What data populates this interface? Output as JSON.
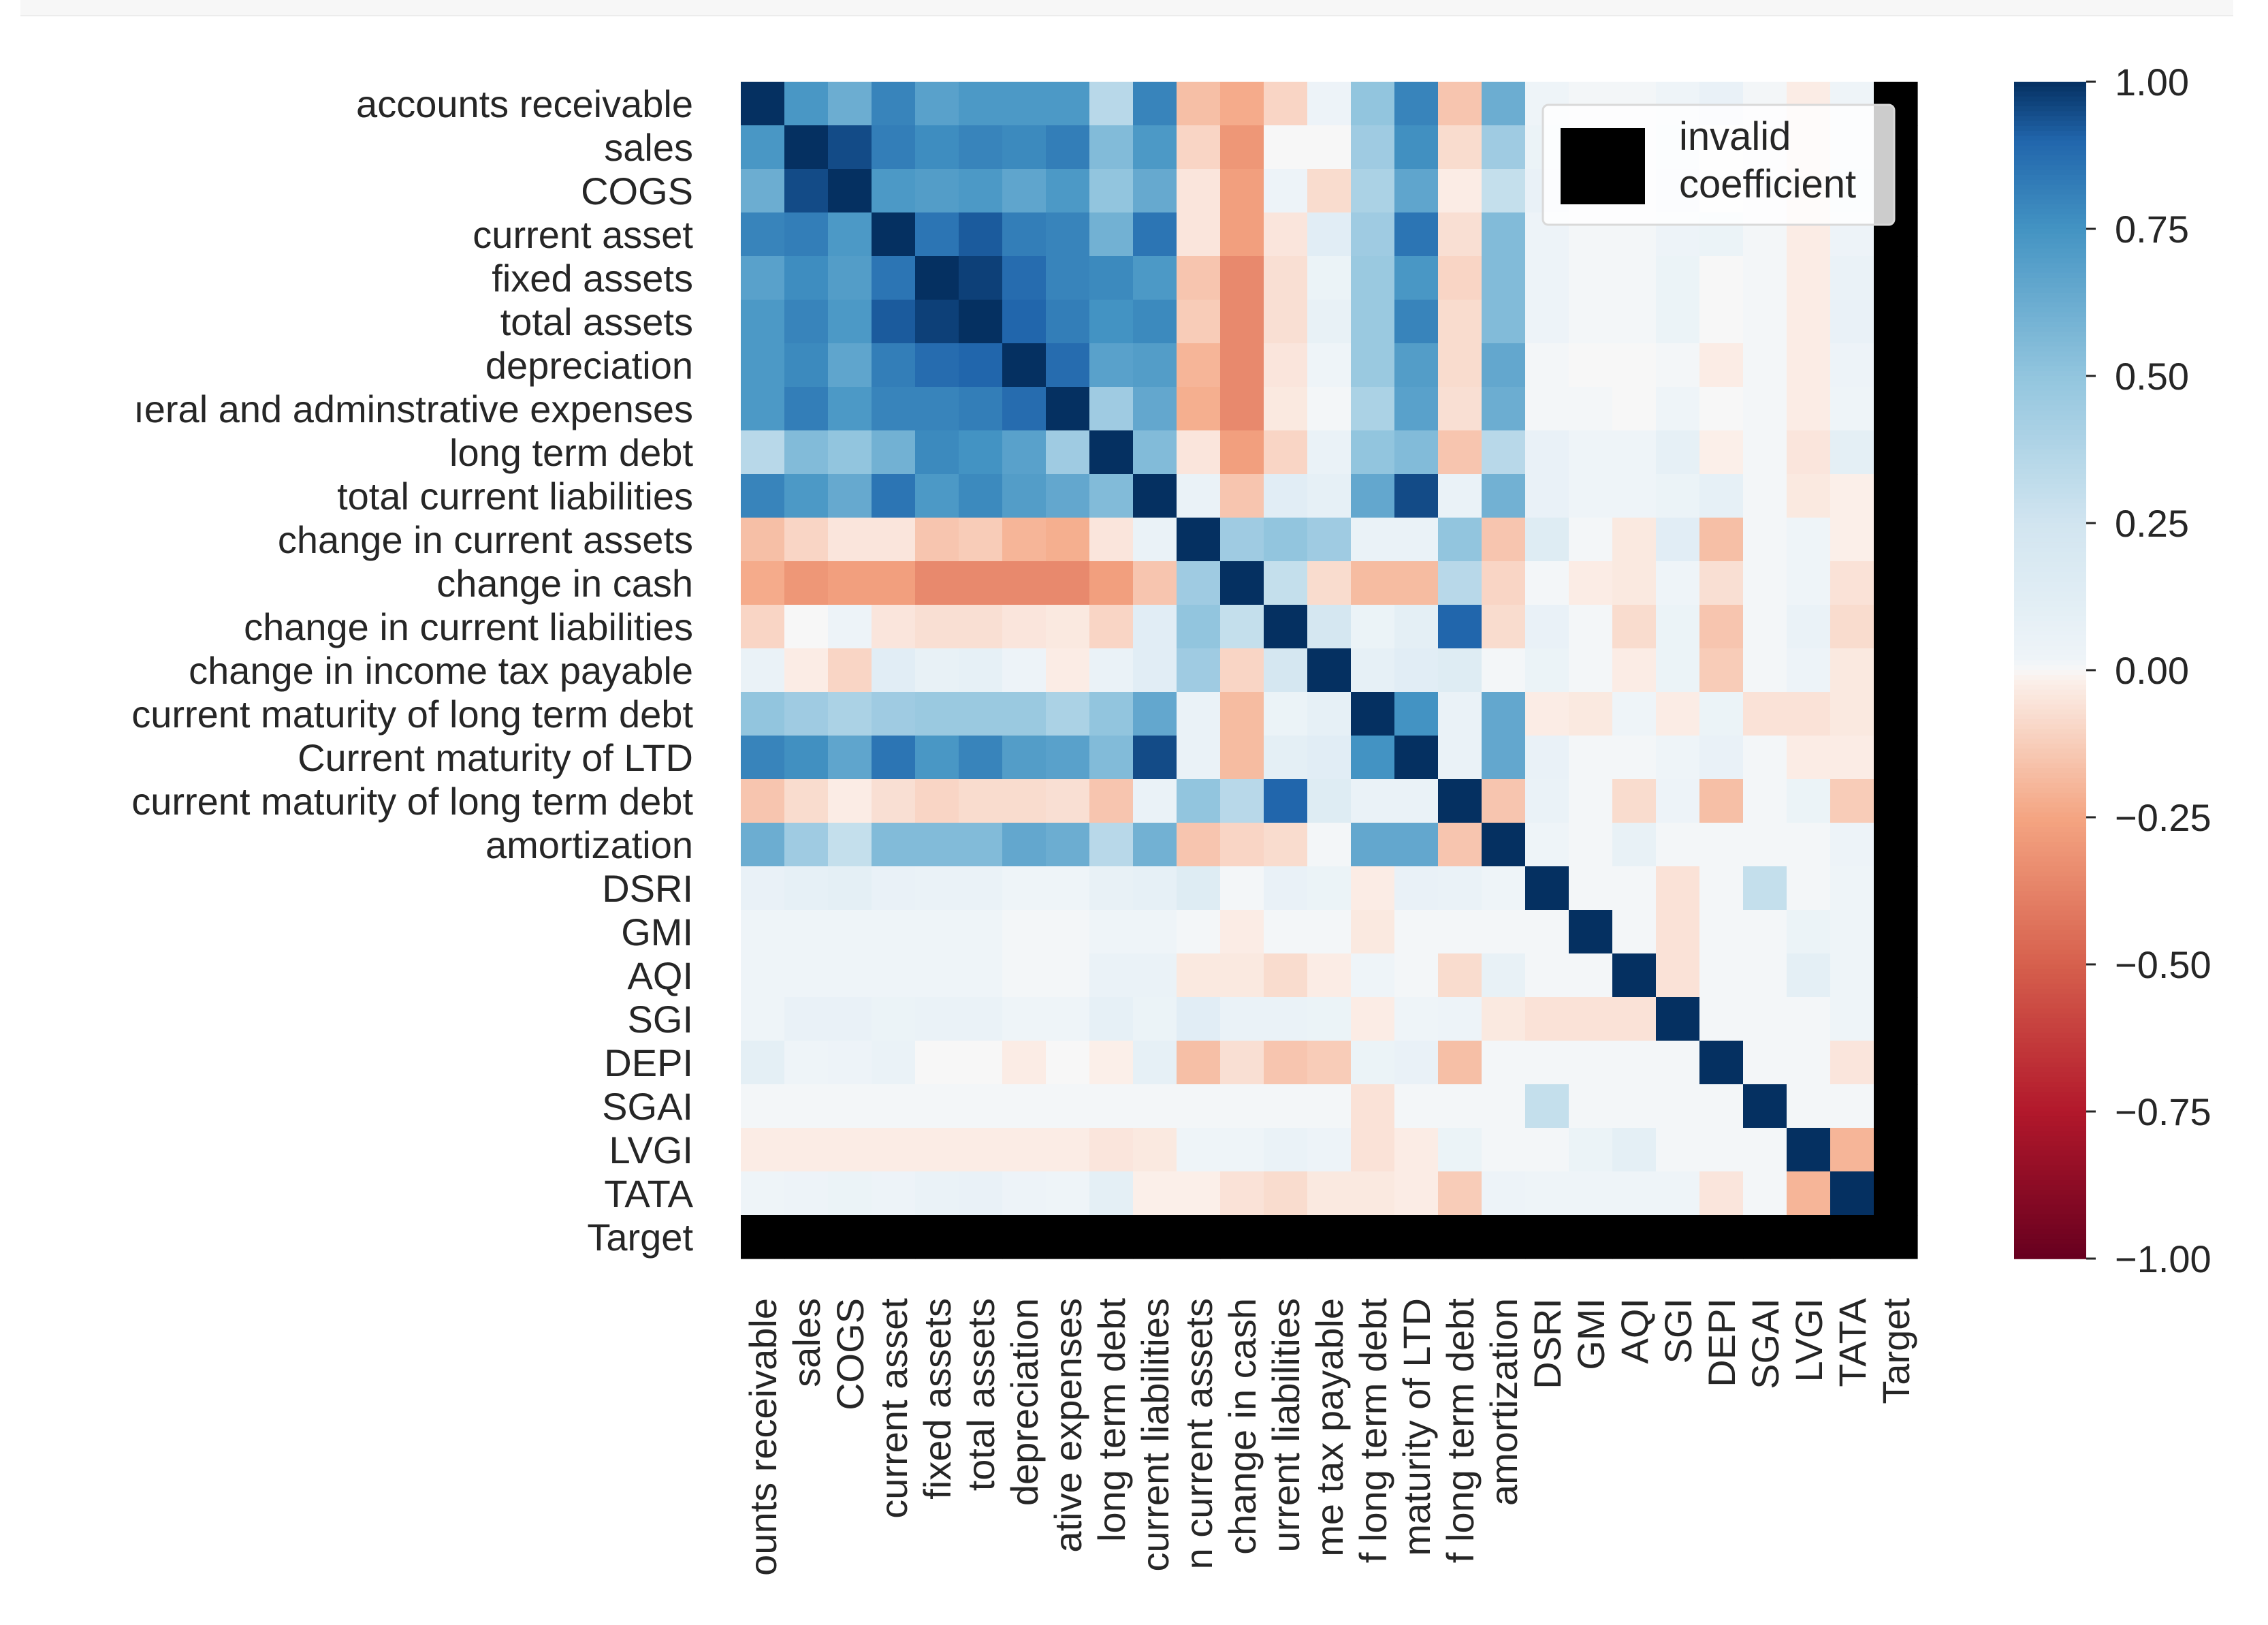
{
  "chart_data": {
    "type": "heatmap",
    "title": "",
    "labels": [
      "accounts receivable",
      "sales",
      "COGS",
      "current asset",
      "fixed assets",
      "total assets",
      "depreciation",
      "general and adminstrative  expenses",
      "long term debt",
      "total current liabilities",
      "change in current assets",
      "change in cash ",
      "change in current liabilities ",
      "change in income tax payable",
      "current maturity of long term debt",
      "Current maturity of LTD",
      "current maturity of long term debt",
      "amortization",
      "DSRI",
      "GMI",
      "AQI",
      "SGI",
      "DEPI",
      "SGAI",
      "LVGI",
      "TATA",
      "Target"
    ],
    "row_labels_visible": [
      "accounts receivable",
      "sales",
      "COGS",
      "current asset",
      "fixed assets",
      "total assets",
      "depreciation",
      "ıeral and adminstrative  expenses",
      "long term debt",
      "total current liabilities",
      "change in current assets",
      "change in cash ",
      "change in current liabilities ",
      "change in income tax payable",
      "current maturity of long term debt",
      "Current maturity of LTD",
      "current maturity of long term debt",
      "amortization",
      "DSRI",
      "GMI",
      "AQI",
      "SGI",
      "DEPI",
      "SGAI",
      "LVGI",
      "TATA",
      "Target"
    ],
    "col_labels_visible": [
      "ounts receivable",
      "sales",
      "COGS",
      "current asset",
      "fixed assets",
      "total assets",
      "depreciation",
      "ative  expenses",
      "long term debt",
      "current liabilities",
      "n current assets",
      "change in cash",
      "urrent liabilities",
      "me tax payable",
      "f long term debt",
      "maturity of LTD",
      "f long term debt",
      "amortization",
      "DSRI",
      "GMI",
      "AQI",
      "SGI",
      "DEPI",
      "SGAI",
      "LVGI",
      "TATA",
      "Target"
    ],
    "values": [
      [
        1.0,
        0.73,
        0.62,
        0.8,
        0.68,
        0.72,
        0.72,
        0.72,
        0.35,
        0.8,
        -0.17,
        -0.23,
        -0.1,
        0.03,
        0.5,
        0.8,
        -0.15,
        0.62,
        0.02,
        0.01,
        0.01,
        0.02,
        0.06,
        0.01,
        -0.03,
        0.02,
        null
      ],
      [
        0.73,
        1.0,
        0.95,
        0.82,
        0.77,
        0.8,
        0.78,
        0.82,
        0.55,
        0.72,
        -0.1,
        -0.3,
        0.0,
        0.0,
        0.45,
        0.76,
        -0.08,
        0.45,
        0.04,
        0.01,
        0.01,
        0.04,
        0.0,
        0.01,
        -0.03,
        0.03,
        null
      ],
      [
        0.62,
        0.95,
        1.0,
        0.72,
        0.7,
        0.72,
        0.66,
        0.72,
        0.5,
        0.64,
        -0.05,
        -0.27,
        0.03,
        -0.08,
        0.4,
        0.66,
        -0.03,
        0.3,
        0.06,
        0.01,
        0.01,
        0.06,
        0.0,
        0.01,
        -0.03,
        0.04,
        null
      ],
      [
        0.8,
        0.82,
        0.72,
        1.0,
        0.85,
        0.92,
        0.82,
        0.8,
        0.6,
        0.85,
        -0.05,
        -0.27,
        -0.05,
        0.12,
        0.45,
        0.85,
        -0.07,
        0.55,
        0.03,
        0.01,
        0.01,
        0.03,
        0.04,
        0.01,
        -0.03,
        0.03,
        null
      ],
      [
        0.68,
        0.77,
        0.7,
        0.85,
        1.0,
        0.97,
        0.88,
        0.8,
        0.78,
        0.72,
        -0.15,
        -0.35,
        -0.07,
        0.04,
        0.47,
        0.73,
        -0.1,
        0.55,
        0.03,
        0.01,
        0.01,
        0.04,
        0.0,
        0.01,
        -0.03,
        0.05,
        null
      ],
      [
        0.72,
        0.8,
        0.72,
        0.92,
        0.97,
        1.0,
        0.9,
        0.82,
        0.75,
        0.78,
        -0.13,
        -0.35,
        -0.07,
        0.07,
        0.47,
        0.8,
        -0.08,
        0.55,
        0.03,
        0.01,
        0.01,
        0.04,
        0.0,
        0.01,
        -0.03,
        0.06,
        null
      ],
      [
        0.72,
        0.78,
        0.66,
        0.82,
        0.88,
        0.9,
        1.0,
        0.88,
        0.68,
        0.7,
        -0.2,
        -0.35,
        -0.05,
        0.02,
        0.47,
        0.7,
        -0.08,
        0.65,
        0.01,
        0.0,
        0.0,
        0.01,
        -0.03,
        0.01,
        -0.03,
        0.03,
        null
      ],
      [
        0.72,
        0.82,
        0.72,
        0.8,
        0.8,
        0.82,
        0.88,
        1.0,
        0.45,
        0.65,
        -0.22,
        -0.35,
        -0.04,
        0.01,
        0.4,
        0.68,
        -0.07,
        0.62,
        0.01,
        0.01,
        0.0,
        0.02,
        0.0,
        0.01,
        -0.03,
        0.02,
        null
      ],
      [
        0.35,
        0.55,
        0.5,
        0.6,
        0.78,
        0.75,
        0.68,
        0.45,
        1.0,
        0.55,
        -0.05,
        -0.27,
        -0.1,
        0.05,
        0.5,
        0.55,
        -0.15,
        0.35,
        0.06,
        0.02,
        0.02,
        0.08,
        -0.02,
        0.01,
        -0.05,
        0.1,
        null
      ],
      [
        0.8,
        0.72,
        0.64,
        0.85,
        0.72,
        0.78,
        0.7,
        0.65,
        0.55,
        1.0,
        0.05,
        -0.15,
        0.12,
        0.08,
        0.65,
        0.95,
        0.05,
        0.6,
        0.06,
        0.02,
        0.02,
        0.04,
        0.08,
        0.01,
        -0.04,
        -0.02,
        null
      ],
      [
        -0.17,
        -0.1,
        -0.05,
        -0.05,
        -0.15,
        -0.13,
        -0.2,
        -0.22,
        -0.05,
        0.05,
        1.0,
        0.45,
        0.5,
        0.45,
        0.05,
        0.05,
        0.5,
        -0.15,
        0.15,
        0.01,
        -0.04,
        0.12,
        -0.17,
        0.01,
        0.02,
        -0.02,
        null
      ],
      [
        -0.23,
        -0.3,
        -0.27,
        -0.27,
        -0.35,
        -0.35,
        -0.35,
        -0.35,
        -0.27,
        -0.15,
        0.45,
        1.0,
        0.3,
        -0.08,
        -0.18,
        -0.18,
        0.35,
        -0.1,
        0.01,
        -0.03,
        -0.04,
        0.02,
        -0.07,
        0.01,
        0.02,
        -0.06,
        null
      ],
      [
        -0.1,
        0.0,
        0.03,
        -0.05,
        -0.07,
        -0.07,
        -0.05,
        -0.04,
        -0.1,
        0.12,
        0.5,
        0.3,
        1.0,
        0.22,
        0.04,
        0.1,
        0.9,
        -0.08,
        0.06,
        0.01,
        -0.08,
        0.04,
        -0.15,
        0.01,
        0.05,
        -0.08,
        null
      ],
      [
        0.05,
        -0.03,
        -0.1,
        0.12,
        0.07,
        0.08,
        0.03,
        -0.03,
        0.05,
        0.12,
        0.45,
        -0.1,
        0.22,
        1.0,
        0.08,
        0.12,
        0.15,
        0.01,
        0.04,
        0.01,
        -0.03,
        0.04,
        -0.13,
        0.01,
        0.03,
        -0.04,
        null
      ],
      [
        0.5,
        0.45,
        0.4,
        0.45,
        0.47,
        0.47,
        0.47,
        0.4,
        0.5,
        0.65,
        0.05,
        -0.18,
        0.04,
        0.08,
        1.0,
        0.75,
        0.05,
        0.65,
        -0.03,
        -0.04,
        0.02,
        -0.03,
        0.04,
        -0.06,
        -0.06,
        -0.04,
        null
      ],
      [
        0.8,
        0.76,
        0.66,
        0.85,
        0.73,
        0.8,
        0.7,
        0.68,
        0.55,
        0.95,
        0.05,
        -0.18,
        0.1,
        0.12,
        0.75,
        1.0,
        0.05,
        0.65,
        0.06,
        0.01,
        0.01,
        0.02,
        0.06,
        0.01,
        -0.03,
        -0.03,
        null
      ],
      [
        -0.15,
        -0.08,
        -0.03,
        -0.07,
        -0.1,
        -0.08,
        -0.08,
        -0.07,
        -0.15,
        0.05,
        0.5,
        0.35,
        0.9,
        0.15,
        0.05,
        0.05,
        1.0,
        -0.15,
        0.05,
        0.01,
        -0.08,
        0.03,
        -0.17,
        0.01,
        0.04,
        -0.13,
        null
      ],
      [
        0.62,
        0.45,
        0.3,
        0.55,
        0.55,
        0.55,
        0.65,
        0.62,
        0.35,
        0.6,
        -0.15,
        -0.1,
        -0.08,
        0.01,
        0.65,
        0.65,
        -0.15,
        1.0,
        0.02,
        0.01,
        0.07,
        0.01,
        0.01,
        0.01,
        0.01,
        0.03,
        null
      ],
      [
        0.06,
        0.08,
        0.1,
        0.06,
        0.05,
        0.05,
        0.02,
        0.02,
        0.07,
        0.08,
        0.15,
        0.01,
        0.06,
        0.04,
        -0.03,
        0.06,
        0.05,
        0.02,
        1.0,
        0.01,
        0.01,
        -0.06,
        0.01,
        0.3,
        0.01,
        0.02,
        null
      ],
      [
        0.02,
        0.02,
        0.02,
        0.02,
        0.02,
        0.02,
        0.01,
        0.01,
        0.02,
        0.02,
        0.01,
        -0.03,
        0.01,
        0.01,
        -0.04,
        0.01,
        0.01,
        0.01,
        0.01,
        1.0,
        0.01,
        -0.06,
        0.01,
        0.01,
        0.04,
        0.02,
        null
      ],
      [
        0.02,
        0.02,
        0.02,
        0.02,
        0.02,
        0.02,
        0.01,
        0.01,
        0.05,
        0.05,
        -0.04,
        -0.04,
        -0.08,
        -0.03,
        0.02,
        0.01,
        -0.08,
        0.07,
        0.01,
        0.01,
        1.0,
        -0.06,
        0.01,
        0.01,
        0.1,
        0.02,
        null
      ],
      [
        0.02,
        0.06,
        0.06,
        0.04,
        0.05,
        0.05,
        0.02,
        0.02,
        0.08,
        0.04,
        0.12,
        0.05,
        0.05,
        0.04,
        -0.03,
        0.02,
        0.03,
        -0.04,
        -0.06,
        -0.06,
        -0.06,
        1.0,
        0.01,
        0.01,
        0.01,
        0.02,
        null
      ],
      [
        0.1,
        0.02,
        0.03,
        0.05,
        0.0,
        0.0,
        -0.03,
        0.0,
        -0.02,
        0.08,
        -0.17,
        -0.07,
        -0.15,
        -0.13,
        0.04,
        0.06,
        -0.17,
        0.01,
        0.01,
        0.01,
        0.01,
        0.01,
        1.0,
        0.01,
        0.01,
        -0.05,
        null
      ],
      [
        0.01,
        0.01,
        0.01,
        0.01,
        0.01,
        0.01,
        0.01,
        0.01,
        0.01,
        0.01,
        0.01,
        0.01,
        0.01,
        0.01,
        -0.06,
        0.01,
        0.01,
        0.01,
        0.3,
        0.01,
        0.01,
        0.01,
        0.01,
        1.0,
        0.01,
        0.01,
        null
      ],
      [
        -0.03,
        -0.03,
        -0.03,
        -0.03,
        -0.03,
        -0.03,
        -0.03,
        -0.03,
        -0.05,
        -0.04,
        0.02,
        0.02,
        0.05,
        0.03,
        -0.06,
        -0.03,
        0.04,
        0.01,
        0.01,
        0.04,
        0.1,
        0.01,
        0.01,
        0.01,
        1.0,
        -0.2,
        null
      ],
      [
        0.02,
        0.03,
        0.04,
        0.03,
        0.05,
        0.06,
        0.03,
        0.02,
        0.1,
        -0.02,
        -0.02,
        -0.06,
        -0.08,
        -0.04,
        -0.04,
        -0.03,
        -0.13,
        0.03,
        0.02,
        0.02,
        0.02,
        0.02,
        -0.05,
        0.01,
        -0.2,
        1.0,
        null
      ],
      [
        null,
        null,
        null,
        null,
        null,
        null,
        null,
        null,
        null,
        null,
        null,
        null,
        null,
        null,
        null,
        null,
        null,
        null,
        null,
        null,
        null,
        null,
        null,
        null,
        null,
        null,
        null
      ]
    ],
    "vmin": -1.0,
    "vmax": 1.0,
    "colormap": "RdBu",
    "colorbar": {
      "ticks": [
        1.0,
        0.75,
        0.5,
        0.25,
        0.0,
        -0.25,
        -0.5,
        -0.75,
        -1.0
      ],
      "tick_labels": [
        "1.00",
        "0.75",
        "0.50",
        "0.25",
        "0.00",
        "−0.25",
        "−0.50",
        "−0.75",
        "−1.00"
      ]
    },
    "legend": {
      "position": "top-right",
      "label_line1": "invalid",
      "label_line2": "coefficient",
      "swatch_color": "#000000"
    },
    "invalid_color": "#000000",
    "xlabel": "",
    "ylabel": ""
  }
}
